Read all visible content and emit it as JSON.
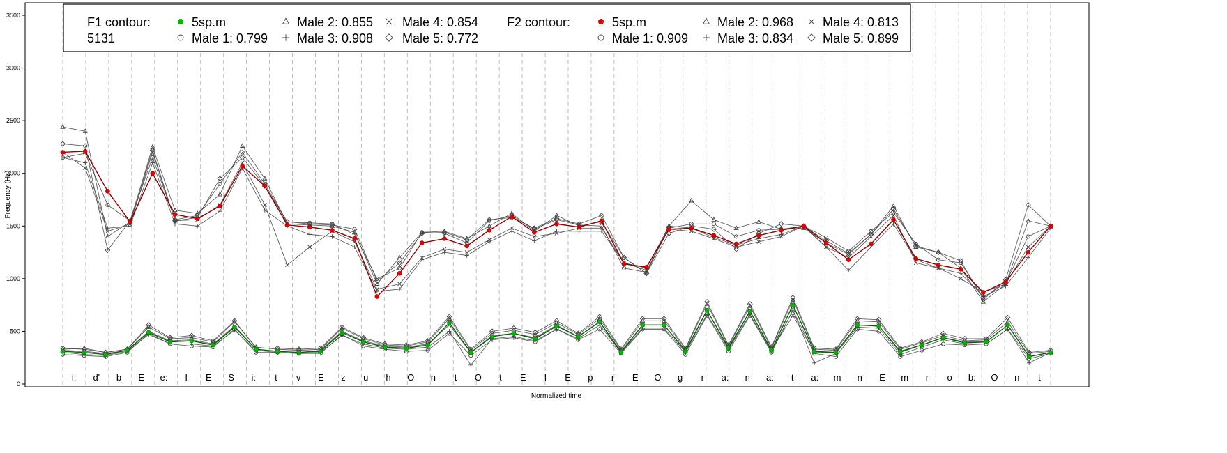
{
  "chart_data": {
    "type": "line",
    "xlabel": "Normalized time",
    "ylabel": "Frequency (Hz)",
    "ylim": [
      -50,
      3600
    ],
    "yticks": [
      0,
      500,
      1000,
      1500,
      2000,
      2500,
      3000,
      3500
    ],
    "grid": "dashed vertical segment boundaries",
    "legend_position": "top",
    "segments": [
      "i:",
      "d'",
      "b",
      "E",
      "e:",
      "I",
      "E",
      "S",
      "i:",
      "t",
      "v",
      "E",
      "z",
      "u",
      "h",
      "O",
      "n",
      "t",
      "O",
      "t",
      "E",
      "I",
      "E",
      "p",
      "r",
      "E",
      "O",
      "g",
      "r",
      "a:",
      "n",
      "a:",
      "t",
      "a:",
      "m",
      "n",
      "E",
      "m",
      "r",
      "o",
      "b:",
      "O",
      "n",
      "t"
    ],
    "legend": {
      "f1_title": "F1 contour:",
      "f1_id": "5131",
      "f1_target": "5sp.m",
      "f1_entries": [
        {
          "symbol": "circle",
          "label": "Male 1: 0.799"
        },
        {
          "symbol": "triangle",
          "label": "Male 2: 0.855"
        },
        {
          "symbol": "plus",
          "label": "Male 3: 0.908"
        },
        {
          "symbol": "cross",
          "label": "Male 4: 0.854"
        },
        {
          "symbol": "diamond",
          "label": "Male 5: 0.772"
        }
      ],
      "f2_title": "F2 contour:",
      "f2_target": "5sp.m",
      "f2_entries": [
        {
          "symbol": "circle",
          "label": "Male 1: 0.909"
        },
        {
          "symbol": "triangle",
          "label": "Male 2: 0.968"
        },
        {
          "symbol": "plus",
          "label": "Male 3: 0.834"
        },
        {
          "symbol": "cross",
          "label": "Male 4: 0.813"
        },
        {
          "symbol": "diamond",
          "label": "Male 5: 0.899"
        }
      ]
    },
    "f2_target_values": [
      2200,
      2210,
      1830,
      1540,
      2000,
      1610,
      1570,
      1690,
      2070,
      1880,
      1510,
      1490,
      1460,
      1380,
      830,
      1050,
      1340,
      1380,
      1310,
      1460,
      1590,
      1440,
      1520,
      1490,
      1550,
      1140,
      1110,
      1470,
      1480,
      1410,
      1330,
      1410,
      1460,
      1500,
      1340,
      1180,
      1330,
      1560,
      1190,
      1130,
      1090,
      870,
      970,
      1250,
      1500
    ],
    "f1_target_values": [
      310,
      300,
      280,
      320,
      490,
      400,
      410,
      370,
      540,
      330,
      310,
      300,
      310,
      490,
      400,
      350,
      340,
      370,
      580,
      300,
      450,
      480,
      430,
      550,
      450,
      590,
      300,
      560,
      560,
      310,
      700,
      340,
      690,
      320,
      750,
      310,
      300,
      560,
      550,
      310,
      370,
      440,
      390,
      400,
      560,
      260,
      300
    ],
    "f2_speakers": [
      {
        "name": "Male 1",
        "symbol": "circle",
        "values": [
          2150,
          2190,
          1700,
          1550,
          2150,
          1560,
          1600,
          1900,
          2200,
          1900,
          1540,
          1530,
          1520,
          1420,
          1000,
          1100,
          1440,
          1430,
          1340,
          1550,
          1600,
          1470,
          1560,
          1510,
          1500,
          1100,
          1060,
          1480,
          1520,
          1520,
          1400,
          1460,
          1470,
          1500,
          1390,
          1260,
          1450,
          1630,
          1330,
          1180,
          1150,
          820,
          960,
          1400,
          1500
        ]
      },
      {
        "name": "Male 2",
        "symbol": "triangle",
        "values": [
          2440,
          2400,
          1400,
          1540,
          2250,
          1650,
          1620,
          1800,
          2260,
          1950,
          1520,
          1510,
          1500,
          1440,
          950,
          1200,
          1440,
          1450,
          1380,
          1500,
          1620,
          1450,
          1600,
          1500,
          1540,
          1200,
          1050,
          1500,
          1740,
          1560,
          1480,
          1540,
          1470,
          1480,
          1340,
          1230,
          1420,
          1690,
          1300,
          1250,
          1100,
          780,
          950,
          1550,
          1500
        ]
      },
      {
        "name": "Male 3",
        "symbol": "plus",
        "values": [
          2150,
          2100,
          1480,
          1500,
          2100,
          1520,
          1500,
          1640,
          2050,
          1650,
          1500,
          1420,
          1400,
          1300,
          880,
          900,
          1180,
          1250,
          1220,
          1350,
          1450,
          1360,
          1450,
          1450,
          1450,
          1150,
          1100,
          1500,
          1480,
          1390,
          1320,
          1380,
          1420,
          1500,
          1300,
          1080,
          1300,
          1520,
          1180,
          1100,
          1050,
          830,
          930,
          1200,
          1480
        ]
      },
      {
        "name": "Male 4",
        "symbol": "cross",
        "values": [
          2200,
          2050,
          1450,
          1520,
          2200,
          1550,
          1560,
          1700,
          2100,
          1700,
          1130,
          1300,
          1450,
          1350,
          900,
          950,
          1200,
          1280,
          1250,
          1370,
          1480,
          1400,
          1430,
          1480,
          1480,
          1150,
          1080,
          1470,
          1450,
          1380,
          1300,
          1350,
          1400,
          1500,
          1300,
          1200,
          1400,
          1600,
          1150,
          1100,
          1000,
          870,
          950,
          1300,
          1500
        ]
      },
      {
        "name": "Male 5",
        "symbol": "diamond",
        "values": [
          2280,
          2260,
          1270,
          1550,
          2220,
          1550,
          1580,
          1950,
          2150,
          1880,
          1540,
          1520,
          1510,
          1470,
          980,
          1150,
          1430,
          1440,
          1370,
          1560,
          1580,
          1480,
          1570,
          1520,
          1600,
          1200,
          1050,
          1430,
          1500,
          1470,
          1280,
          1430,
          1520,
          1500,
          1360,
          1240,
          1420,
          1660,
          1310,
          1250,
          1170,
          800,
          990,
          1700,
          1500
        ]
      }
    ],
    "f1_speakers": [
      {
        "name": "Male 1",
        "symbol": "circle",
        "values": [
          280,
          270,
          260,
          300,
          480,
          380,
          360,
          350,
          520,
          300,
          300,
          290,
          290,
          470,
          360,
          330,
          310,
          320,
          480,
          270,
          420,
          440,
          400,
          520,
          420,
          520,
          290,
          520,
          520,
          280,
          650,
          310,
          650,
          300,
          700,
          290,
          260,
          520,
          500,
          260,
          320,
          380,
          370,
          380,
          520,
          240,
          290
        ]
      },
      {
        "name": "Male 2",
        "symbol": "triangle",
        "values": [
          330,
          340,
          300,
          330,
          540,
          430,
          440,
          400,
          590,
          350,
          330,
          320,
          330,
          530,
          430,
          370,
          360,
          400,
          620,
          320,
          480,
          510,
          470,
          580,
          470,
          620,
          320,
          600,
          600,
          330,
          760,
          360,
          740,
          340,
          800,
          330,
          320,
          600,
          590,
          330,
          390,
          460,
          410,
          420,
          590,
          290,
          310
        ]
      },
      {
        "name": "Male 3",
        "symbol": "plus",
        "values": [
          300,
          280,
          270,
          310,
          470,
          380,
          380,
          360,
          510,
          320,
          300,
          290,
          300,
          460,
          380,
          340,
          330,
          350,
          500,
          180,
          430,
          450,
          410,
          520,
          430,
          560,
          300,
          530,
          530,
          300,
          660,
          330,
          660,
          310,
          700,
          200,
          290,
          540,
          530,
          280,
          350,
          420,
          380,
          380,
          520,
          200,
          300
        ]
      },
      {
        "name": "Male 4",
        "symbol": "cross",
        "values": [
          320,
          310,
          290,
          320,
          500,
          410,
          420,
          380,
          550,
          330,
          310,
          300,
          320,
          500,
          410,
          360,
          350,
          380,
          560,
          300,
          460,
          480,
          440,
          560,
          450,
          590,
          310,
          560,
          560,
          320,
          700,
          350,
          690,
          320,
          650,
          300,
          300,
          560,
          550,
          300,
          370,
          440,
          400,
          400,
          560,
          260,
          300
        ]
      },
      {
        "name": "Male 5",
        "symbol": "diamond",
        "values": [
          340,
          330,
          300,
          330,
          560,
          440,
          460,
          410,
          600,
          340,
          340,
          330,
          340,
          540,
          440,
          380,
          370,
          410,
          640,
          330,
          500,
          530,
          490,
          600,
          480,
          640,
          330,
          620,
          620,
          340,
          780,
          370,
          760,
          350,
          820,
          340,
          330,
          620,
          610,
          340,
          400,
          480,
          430,
          430,
          630,
          300,
          320
        ]
      }
    ],
    "colors": {
      "f2_target": "#e00000",
      "f2_target_dark": "#8b0000",
      "f1_target": "#00b400",
      "f1_target_dark": "#006400",
      "speakers": "#444444",
      "grid": "#bdbdbd"
    }
  }
}
